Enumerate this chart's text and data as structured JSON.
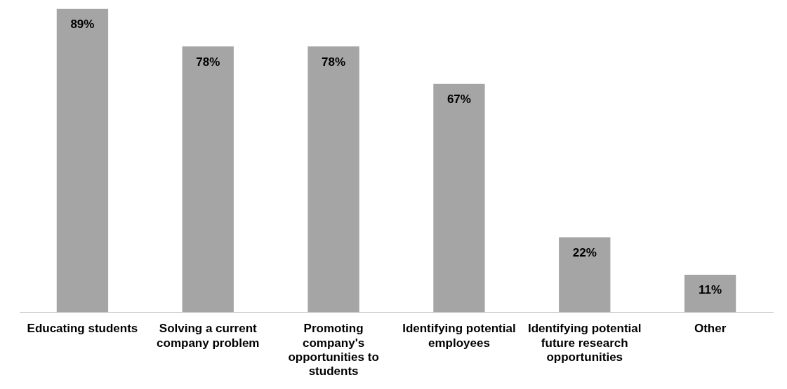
{
  "chart_data": {
    "type": "bar",
    "categories": [
      "Educating students",
      "Solving a current company problem",
      "Promoting company's opportunities to students",
      "Identifying potential employees",
      "Identifying potential future research opportunities",
      "Other"
    ],
    "values": [
      89,
      78,
      78,
      67,
      22,
      11
    ],
    "color": "#a5a5a5",
    "value_labels": [
      "89%",
      "78%",
      "78%",
      "67%",
      "22%",
      "11%"
    ],
    "relative": false,
    "grid": false,
    "legend": false
  }
}
